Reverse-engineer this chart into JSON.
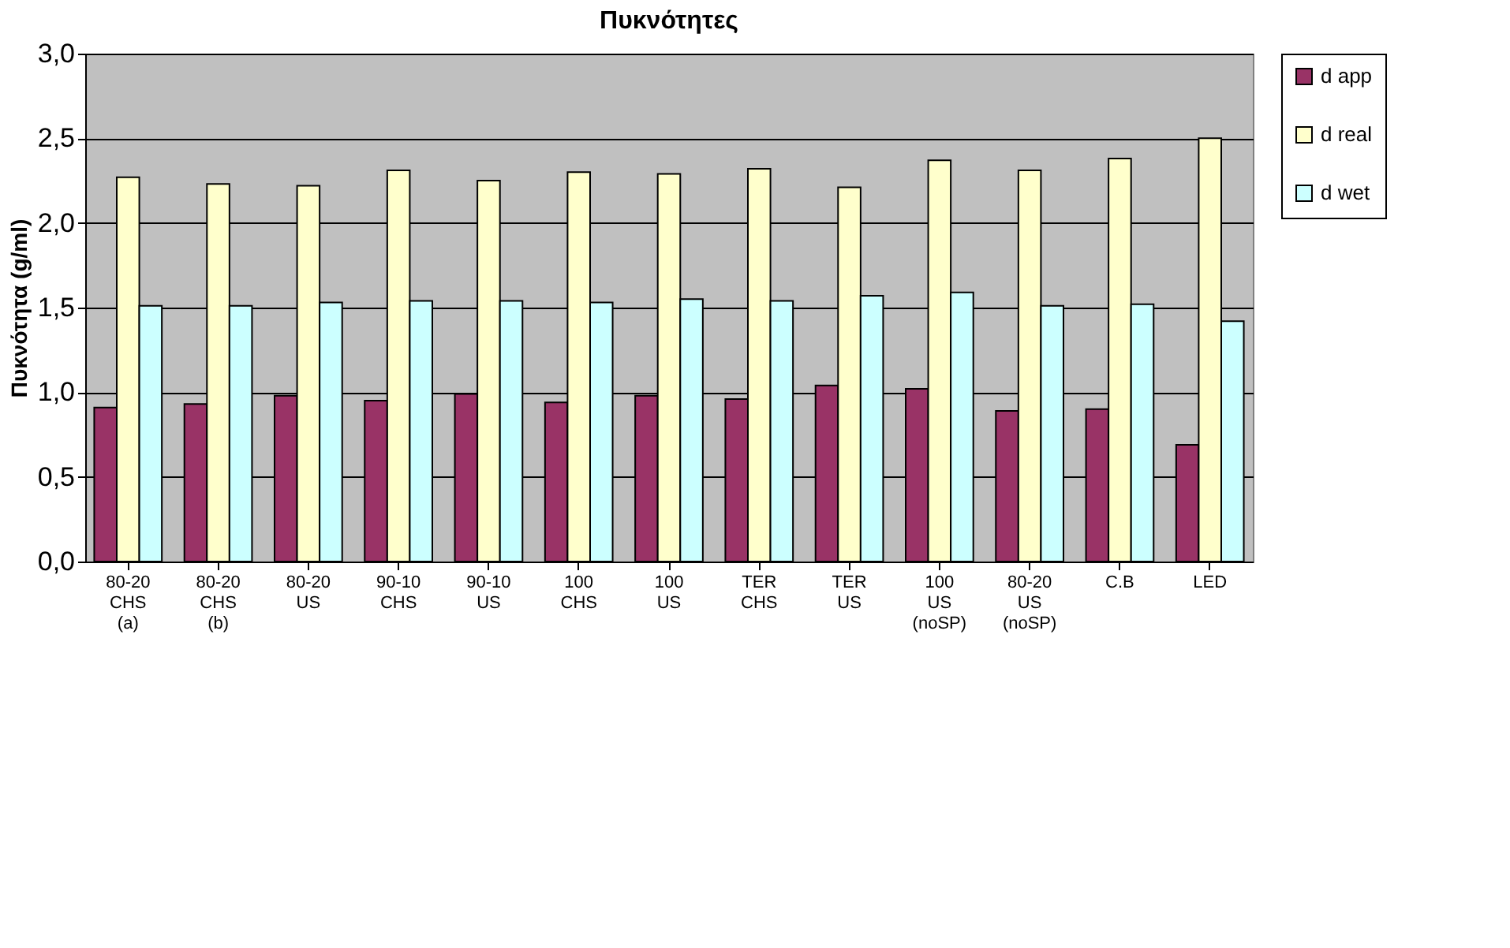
{
  "chart_data": {
    "type": "bar",
    "title": "Πυκνότητες",
    "ylabel": "Πυκνότητα (g/ml)",
    "categories": [
      "80-20\nCHS\n(a)",
      "80-20\nCHS\n(b)",
      "80-20\nUS",
      "90-10\nCHS",
      "90-10\nUS",
      "100\nCHS",
      "100\nUS",
      "TER\nCHS",
      "TER\nUS",
      "100\nUS\n(noSP)",
      "80-20\nUS\n(noSP)",
      "C.B",
      "LED"
    ],
    "series": [
      {
        "name": "d app",
        "color": "#993366",
        "values": [
          0.91,
          0.93,
          0.98,
          0.95,
          0.99,
          0.94,
          0.98,
          0.96,
          1.04,
          1.02,
          0.89,
          0.9,
          0.69
        ]
      },
      {
        "name": "d real",
        "color": "#ffffcc",
        "values": [
          2.27,
          2.23,
          2.22,
          2.31,
          2.25,
          2.3,
          2.29,
          2.32,
          2.21,
          2.37,
          2.31,
          2.38,
          2.5
        ]
      },
      {
        "name": "d wet",
        "color": "#ccffff",
        "values": [
          1.51,
          1.51,
          1.53,
          1.54,
          1.54,
          1.53,
          1.55,
          1.54,
          1.57,
          1.59,
          1.51,
          1.52,
          1.42
        ]
      }
    ],
    "ylim": [
      0,
      3
    ],
    "yticks": [
      {
        "value": 0,
        "label": "0,0"
      },
      {
        "value": 0.5,
        "label": "0,5"
      },
      {
        "value": 1,
        "label": "1,0"
      },
      {
        "value": 1.5,
        "label": "1,5"
      },
      {
        "value": 2,
        "label": "2,0"
      },
      {
        "value": 2.5,
        "label": "2,5"
      },
      {
        "value": 3,
        "label": "3,0"
      }
    ],
    "grid": "y",
    "legend": "right"
  }
}
